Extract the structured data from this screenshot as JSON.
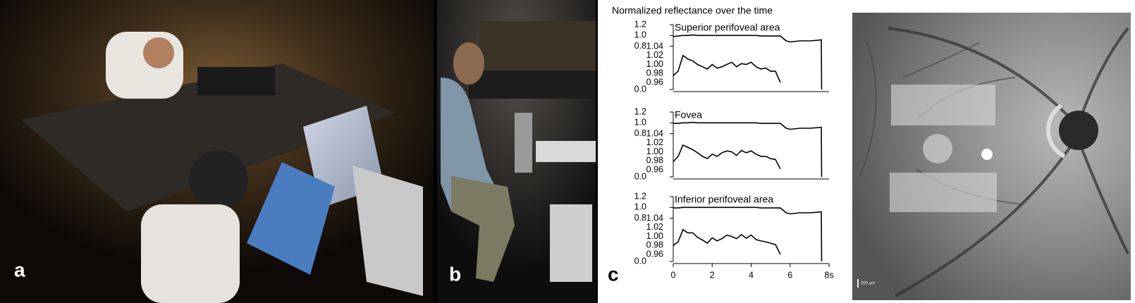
{
  "figure": {
    "title": "Normalized reflectance over the time",
    "panel_labels": [
      "a",
      "b",
      "c"
    ],
    "scale_bar": "200 µm"
  },
  "chart_data": [
    {
      "type": "line",
      "title": "Superior perifoveal area",
      "x": [
        0,
        0.25,
        0.5,
        0.75,
        1,
        1.25,
        1.5,
        1.75,
        2,
        2.25,
        2.5,
        2.75,
        3,
        3.25,
        3.5,
        3.75,
        4,
        4.25,
        4.5,
        4.75,
        5,
        5.25,
        5.5,
        5.8,
        6,
        6.5,
        7,
        7.4,
        7.6,
        7.62
      ],
      "xlim": [
        0,
        8
      ],
      "ylim": [
        0,
        1.2
      ],
      "yticks": [
        {
          "value": 0,
          "label": "0.0"
        },
        0.8,
        {
          "value": 1,
          "label": "1.0"
        },
        1.2
      ],
      "y2lim": [
        0.96,
        1.04
      ],
      "y2ticks": [
        0.96,
        0.98,
        {
          "value": 1,
          "label": "1.00"
        },
        1.02,
        1.04
      ],
      "series": [
        {
          "color": "#000000",
          "values": [
            0.98,
            0.99,
            1.0,
            1.0,
            1.01,
            1.0,
            1.0,
            1.0,
            1.0,
            1.0,
            1.0,
            1.0,
            1.0,
            1.0,
            1.0,
            1.0,
            1.0,
            1.0,
            0.99,
            0.99,
            0.99,
            0.99,
            0.99,
            0.9,
            0.88,
            0.9,
            0.9,
            0.91,
            0.92,
            0.0
          ]
        },
        {
          "color": "#000000",
          "axis": "y2",
          "values": [
            0.975,
            0.985,
            1.02,
            1.012,
            1.008,
            1.0,
            0.995,
            0.99,
            1.0,
            0.992,
            0.995,
            1.0,
            1.005,
            0.995,
            1.002,
            1.0,
            1.005,
            0.995,
            0.99,
            0.992,
            0.985,
            0.985,
            0.96,
            null,
            null,
            null,
            null,
            null,
            null,
            null
          ]
        }
      ]
    },
    {
      "type": "line",
      "title": "Fovea",
      "x": [
        0,
        0.25,
        0.5,
        0.75,
        1,
        1.25,
        1.5,
        1.75,
        2,
        2.25,
        2.5,
        2.75,
        3,
        3.25,
        3.5,
        3.75,
        4,
        4.25,
        4.5,
        4.75,
        5,
        5.25,
        5.5,
        5.8,
        6,
        6.5,
        7,
        7.4,
        7.6,
        7.62
      ],
      "xlim": [
        0,
        8
      ],
      "ylim": [
        0,
        1.2
      ],
      "yticks": [
        {
          "value": 0,
          "label": "0.0"
        },
        0.8,
        {
          "value": 1,
          "label": "1.0"
        },
        1.2
      ],
      "y2lim": [
        0.96,
        1.04
      ],
      "y2ticks": [
        0.96,
        0.98,
        {
          "value": 1,
          "label": "1.00"
        },
        1.02,
        1.04
      ],
      "series": [
        {
          "color": "#000000",
          "values": [
            0.99,
            0.99,
            1.0,
            1.0,
            1.01,
            1.0,
            1.0,
            1.0,
            1.0,
            1.0,
            1.0,
            1.0,
            1.0,
            1.0,
            1.0,
            1.0,
            1.0,
            1.0,
            0.99,
            0.99,
            0.99,
            0.99,
            0.99,
            0.9,
            0.88,
            0.9,
            0.9,
            0.91,
            0.92,
            0.0
          ]
        },
        {
          "color": "#000000",
          "axis": "y2",
          "values": [
            0.978,
            0.99,
            1.015,
            1.01,
            1.005,
            0.998,
            0.99,
            0.985,
            0.995,
            0.99,
            0.998,
            1.002,
            1.0,
            0.992,
            1.003,
            0.998,
            1.002,
            0.995,
            0.99,
            0.99,
            0.985,
            0.983,
            0.962,
            null,
            null,
            null,
            null,
            null,
            null,
            null
          ]
        }
      ]
    },
    {
      "type": "line",
      "title": "Inferior perifoveal area",
      "x": [
        0,
        0.25,
        0.5,
        0.75,
        1,
        1.25,
        1.5,
        1.75,
        2,
        2.25,
        2.5,
        2.75,
        3,
        3.25,
        3.5,
        3.75,
        4,
        4.25,
        4.5,
        4.75,
        5,
        5.25,
        5.5,
        5.8,
        6,
        6.5,
        7,
        7.4,
        7.6,
        7.62
      ],
      "xlim": [
        0,
        8
      ],
      "xticks": [
        0,
        2,
        4,
        6,
        {
          "value": 8,
          "label": "8s"
        }
      ],
      "ylim": [
        0,
        1.2
      ],
      "yticks": [
        {
          "value": 0,
          "label": "0.0"
        },
        0.8,
        {
          "value": 1,
          "label": "1.0"
        },
        1.2
      ],
      "y2lim": [
        0.96,
        1.04
      ],
      "y2ticks": [
        0.96,
        0.98,
        {
          "value": 1,
          "label": "1.00"
        },
        1.02,
        1.04
      ],
      "series": [
        {
          "color": "#000000",
          "values": [
            0.99,
            0.99,
            1.0,
            1.0,
            1.0,
            1.0,
            1.0,
            1.0,
            1.0,
            1.0,
            1.0,
            1.0,
            1.0,
            1.0,
            1.0,
            1.0,
            1.0,
            1.0,
            0.99,
            0.99,
            0.99,
            0.99,
            0.99,
            0.9,
            0.88,
            0.9,
            0.9,
            0.91,
            0.92,
            0.0
          ]
        },
        {
          "color": "#000000",
          "axis": "y2",
          "values": [
            0.98,
            0.988,
            1.015,
            1.008,
            1.008,
            0.998,
            0.992,
            0.985,
            0.997,
            0.99,
            0.995,
            1.003,
            1.0,
            0.995,
            1.004,
            0.996,
            1.003,
            0.993,
            0.99,
            0.988,
            0.985,
            0.982,
            0.96,
            null,
            null,
            null,
            null,
            null,
            null,
            null
          ]
        }
      ]
    }
  ]
}
